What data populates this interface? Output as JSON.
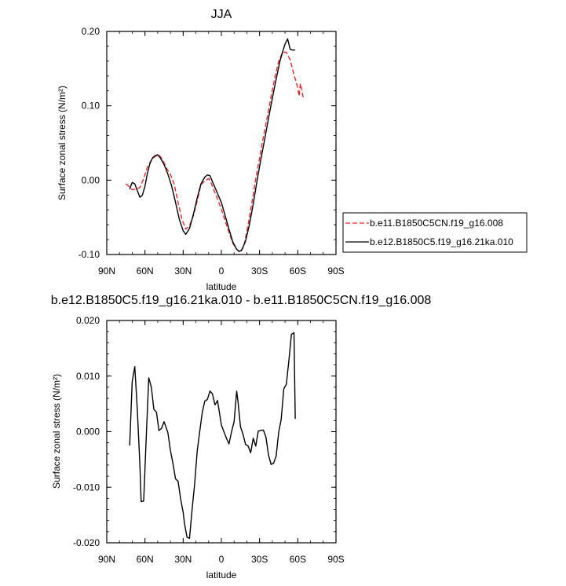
{
  "chart_data": [
    {
      "type": "line",
      "title": "JJA",
      "xlabel": "latitude",
      "ylabel": "Surface zonal stress (N/m²)",
      "xlim": [
        90,
        -90
      ],
      "ylim": [
        -0.1,
        0.2
      ],
      "xticks": [
        90,
        60,
        30,
        0,
        -30,
        -60,
        -90
      ],
      "xtick_labels": [
        "90N",
        "60N",
        "30N",
        "0",
        "30S",
        "60S",
        "90S"
      ],
      "yticks": [
        -0.1,
        0.0,
        0.1,
        0.2
      ],
      "ytick_labels": [
        "-0.10",
        "0.00",
        "0.10",
        "0.20"
      ],
      "legend_position": "right",
      "grid": false,
      "series": [
        {
          "name": "b.e11.B1850C5CN.f19_g16.008",
          "color": "#e8252a",
          "dash": "dashed",
          "x": [
            75,
            72,
            70,
            67,
            64,
            61,
            58,
            55,
            52,
            49,
            46,
            43,
            40,
            37,
            34,
            31,
            28,
            25,
            22,
            19,
            16,
            13,
            10,
            8,
            6,
            4,
            2,
            0,
            -3,
            -6,
            -9,
            -12,
            -15,
            -18,
            -21,
            -24,
            -27,
            -30,
            -33,
            -36,
            -39,
            -42,
            -45,
            -48,
            -51,
            -54,
            -57,
            -60,
            -61,
            -62,
            -63,
            -64,
            -65
          ],
          "y": [
            -0.005,
            -0.009,
            -0.013,
            -0.012,
            -0.01,
            0.002,
            0.018,
            0.027,
            0.032,
            0.034,
            0.027,
            0.016,
            0.008,
            -0.006,
            -0.03,
            -0.052,
            -0.066,
            -0.061,
            -0.048,
            -0.028,
            -0.006,
            -0.001,
            0.002,
            -0.004,
            -0.013,
            -0.021,
            -0.03,
            -0.039,
            -0.055,
            -0.07,
            -0.085,
            -0.093,
            -0.097,
            -0.086,
            -0.06,
            -0.03,
            0.002,
            0.03,
            0.058,
            0.085,
            0.112,
            0.138,
            0.16,
            0.172,
            0.172,
            0.162,
            0.142,
            0.124,
            0.113,
            0.13,
            0.122,
            0.113,
            0.11
          ]
        },
        {
          "name": "b.e12.B1850C5.f19_g16.21ka.010",
          "color": "#000000",
          "dash": "solid",
          "x": [
            72,
            70,
            68,
            66,
            64,
            62,
            60,
            58,
            56,
            54,
            52,
            50,
            48,
            45,
            42,
            39,
            36,
            33,
            30,
            28,
            25,
            22,
            19,
            16,
            13,
            11,
            9,
            7,
            5,
            3,
            0,
            -3,
            -6,
            -9,
            -12,
            -14,
            -16,
            -19,
            -22,
            -25,
            -28,
            -31,
            -34,
            -37,
            -40,
            -43,
            -46,
            -48,
            -50,
            -52,
            -54,
            -56,
            -58
          ],
          "y": [
            -0.012,
            -0.003,
            -0.005,
            -0.014,
            -0.023,
            -0.02,
            -0.008,
            0.01,
            0.023,
            0.03,
            0.033,
            0.034,
            0.03,
            0.021,
            0.008,
            -0.008,
            -0.03,
            -0.053,
            -0.068,
            -0.073,
            -0.065,
            -0.046,
            -0.024,
            -0.005,
            0.004,
            0.007,
            0.006,
            -0.002,
            -0.01,
            -0.018,
            -0.03,
            -0.048,
            -0.066,
            -0.083,
            -0.093,
            -0.096,
            -0.094,
            -0.082,
            -0.06,
            -0.032,
            -0.001,
            0.028,
            0.055,
            0.083,
            0.11,
            0.136,
            0.16,
            0.172,
            0.183,
            0.19,
            0.176,
            0.175,
            0.175
          ]
        }
      ]
    },
    {
      "type": "line",
      "title": "b.e12.B1850C5.f19_g16.21ka.010 - b.e11.B1850C5CN.f19_g16.008",
      "xlabel": "latitude",
      "ylabel": "Surface zonal stress (N/m²)",
      "xlim": [
        90,
        -90
      ],
      "ylim": [
        -0.02,
        0.02
      ],
      "xticks": [
        90,
        60,
        30,
        0,
        -30,
        -60,
        -90
      ],
      "xtick_labels": [
        "90N",
        "60N",
        "30N",
        "0",
        "30S",
        "60S",
        "90S"
      ],
      "yticks": [
        -0.02,
        -0.01,
        0.0,
        0.01,
        0.02
      ],
      "ytick_labels": [
        "-0.020",
        "-0.010",
        "0.000",
        "0.010",
        "0.020"
      ],
      "grid": false,
      "series": [
        {
          "color": "#000000",
          "dash": "solid",
          "x": [
            72,
            70,
            68,
            66,
            64,
            63,
            61,
            59,
            57,
            55,
            53,
            51,
            49,
            47,
            45,
            42,
            40,
            38,
            36,
            34,
            32,
            30,
            29,
            27,
            25,
            23,
            21,
            19,
            17,
            15,
            13,
            11,
            9,
            7,
            5,
            3,
            0,
            -2,
            -4,
            -6,
            -8,
            -10,
            -12,
            -13,
            -15,
            -17,
            -19,
            -21,
            -23,
            -25,
            -27,
            -29,
            -31,
            -33,
            -35,
            -37,
            -39,
            -41,
            -43,
            -45,
            -47,
            -49,
            -51,
            -53,
            -55,
            -57,
            -58
          ],
          "y": [
            -0.0025,
            0.009,
            0.0117,
            0.004,
            -0.006,
            -0.0126,
            -0.0125,
            -0.001,
            0.0097,
            0.008,
            0.004,
            0.0035,
            0.0002,
            0.0006,
            0.0018,
            -0.0002,
            -0.0034,
            -0.0058,
            -0.0085,
            -0.0089,
            -0.0121,
            -0.0145,
            -0.0165,
            -0.019,
            -0.0192,
            -0.014,
            -0.0095,
            -0.0035,
            0.0,
            0.0035,
            0.0055,
            0.0058,
            0.0073,
            0.0068,
            0.0048,
            0.0056,
            0.0012,
            0.0,
            -0.0012,
            -0.0022,
            0.0,
            0.0018,
            0.0073,
            0.0055,
            0.0009,
            -0.0005,
            -0.0023,
            -0.0026,
            -0.0038,
            -0.0012,
            -0.0026,
            0.0001,
            0.0002,
            0.0003,
            -0.001,
            -0.0042,
            -0.0059,
            -0.0057,
            -0.0044,
            -0.0001,
            0.0022,
            0.0077,
            0.0085,
            0.0128,
            0.0175,
            0.0178,
            0.0023
          ]
        }
      ]
    }
  ]
}
